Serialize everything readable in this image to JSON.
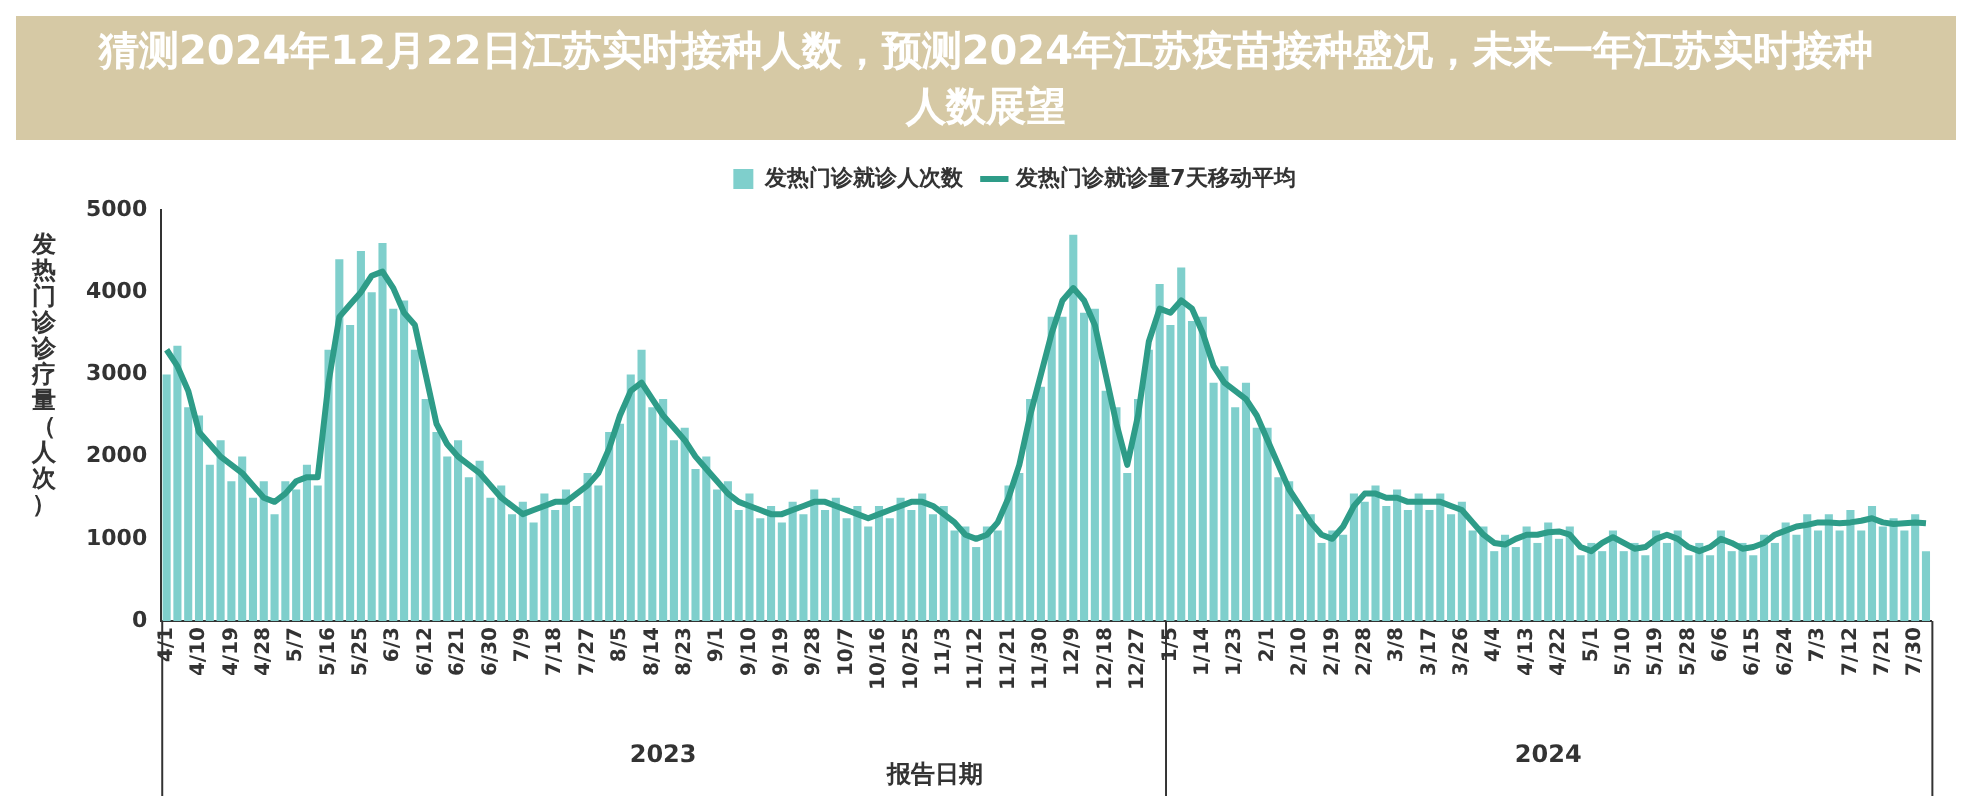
{
  "chart_data": {
    "type": "bar",
    "title": "猜测2024年12月22日江苏实时接种人数，预测2024年江苏疫苗接种盛况，未来一年江苏实时接种人数展望",
    "xlabel": "报告日期",
    "ylabel": "发热门诊诊疗量（人次）",
    "annotations": [
      "2023",
      "2024"
    ],
    "legend": "top",
    "marker": "none",
    "ylim": [
      0,
      5000
    ],
    "yticks": [
      0,
      1000,
      2000,
      3000,
      4000,
      5000
    ],
    "categories": [
      "4/1",
      null,
      null,
      "4/10",
      null,
      null,
      "4/19",
      null,
      null,
      "4/28",
      null,
      null,
      "5/7",
      null,
      null,
      "5/16",
      null,
      null,
      "5/25",
      null,
      null,
      "6/3",
      null,
      null,
      "6/12",
      null,
      null,
      "6/21",
      null,
      null,
      "6/30",
      null,
      null,
      "7/9",
      null,
      null,
      "7/18",
      null,
      null,
      "7/27",
      null,
      null,
      "8/5",
      null,
      null,
      "8/14",
      null,
      null,
      "8/23",
      null,
      null,
      "9/1",
      null,
      null,
      "9/10",
      null,
      null,
      "9/19",
      null,
      null,
      "9/28",
      null,
      null,
      "10/7",
      null,
      null,
      "10/16",
      null,
      null,
      "10/25",
      null,
      null,
      "11/3",
      null,
      null,
      "11/12",
      null,
      null,
      "11/21",
      null,
      null,
      "11/30",
      null,
      null,
      "12/9",
      null,
      null,
      "12/18",
      null,
      null,
      "12/27",
      null,
      null,
      "1/5",
      null,
      null,
      "1/14",
      null,
      null,
      "1/23",
      null,
      null,
      "2/1",
      null,
      null,
      "2/10",
      null,
      null,
      "2/19",
      null,
      null,
      "2/28",
      null,
      null,
      "3/8",
      null,
      null,
      "3/17",
      null,
      null,
      "3/26",
      null,
      null,
      "4/4",
      null,
      null,
      "4/13",
      null,
      null,
      "4/22",
      null,
      null,
      "5/1",
      null,
      null,
      "5/10",
      null,
      null,
      "5/19",
      null,
      null,
      "5/28",
      null,
      null,
      "6/6",
      null,
      null,
      "6/15",
      null,
      null,
      "6/24",
      null,
      null,
      "7/3",
      null,
      null,
      "7/12",
      null,
      null,
      "7/21",
      null,
      null,
      "7/30",
      null
    ],
    "series": [
      {
        "name": "发热门诊就诊人次数",
        "color": "#7fcfcc",
        "values": [
          3000,
          3350,
          2600,
          2500,
          1900,
          2200,
          1700,
          2000,
          1500,
          1700,
          1300,
          1700,
          1600,
          1900,
          1650,
          3300,
          4400,
          3600,
          4500,
          4000,
          4600,
          3800,
          3900,
          3300,
          2700,
          2300,
          2000,
          2200,
          1750,
          1950,
          1500,
          1650,
          1300,
          1450,
          1200,
          1550,
          1350,
          1600,
          1400,
          1800,
          1650,
          2300,
          2400,
          3000,
          3300,
          2600,
          2700,
          2200,
          2350,
          1850,
          2000,
          1600,
          1700,
          1350,
          1550,
          1250,
          1400,
          1200,
          1450,
          1300,
          1600,
          1350,
          1500,
          1250,
          1400,
          1150,
          1400,
          1250,
          1500,
          1350,
          1550,
          1300,
          1400,
          1100,
          1150,
          900,
          1150,
          1100,
          1650,
          1800,
          2700,
          2850,
          3700,
          3700,
          4700,
          3750,
          3800,
          2800,
          2600,
          1800,
          2700,
          3300,
          4100,
          3600,
          4300,
          3650,
          3700,
          2900,
          3100,
          2600,
          2900,
          2350,
          2350,
          1750,
          1700,
          1300,
          1300,
          950,
          1100,
          1050,
          1550,
          1450,
          1650,
          1400,
          1600,
          1350,
          1550,
          1350,
          1550,
          1300,
          1450,
          1100,
          1150,
          850,
          1050,
          900,
          1150,
          950,
          1200,
          1000,
          1150,
          800,
          950,
          850,
          1100,
          850,
          950,
          800,
          1100,
          950,
          1100,
          800,
          950,
          800,
          1100,
          850,
          950,
          800,
          1050,
          950,
          1200,
          1050,
          1300,
          1100,
          1300,
          1100,
          1350,
          1100,
          1400,
          1150,
          1250,
          1100,
          1300,
          850
        ]
      },
      {
        "name": "发热门诊就诊量7天移动平均",
        "type": "line",
        "color": "#2e9c88",
        "values": [
          3300,
          3100,
          2800,
          2300,
          2150,
          2000,
          1900,
          1800,
          1650,
          1500,
          1450,
          1550,
          1700,
          1750,
          1750,
          2900,
          3700,
          3850,
          4000,
          4200,
          4250,
          4050,
          3750,
          3600,
          3000,
          2400,
          2150,
          2000,
          1900,
          1800,
          1650,
          1500,
          1400,
          1300,
          1350,
          1400,
          1450,
          1450,
          1550,
          1650,
          1800,
          2100,
          2500,
          2800,
          2900,
          2700,
          2500,
          2350,
          2200,
          2000,
          1850,
          1700,
          1550,
          1450,
          1400,
          1350,
          1300,
          1300,
          1350,
          1400,
          1450,
          1450,
          1400,
          1350,
          1300,
          1250,
          1300,
          1350,
          1400,
          1450,
          1450,
          1400,
          1300,
          1200,
          1050,
          1000,
          1050,
          1200,
          1500,
          1900,
          2500,
          3000,
          3500,
          3900,
          4050,
          3900,
          3600,
          3000,
          2400,
          1900,
          2500,
          3400,
          3800,
          3750,
          3900,
          3800,
          3500,
          3100,
          2900,
          2800,
          2700,
          2500,
          2200,
          1900,
          1600,
          1400,
          1200,
          1050,
          1000,
          1150,
          1400,
          1550,
          1550,
          1500,
          1500,
          1450,
          1450,
          1450,
          1450,
          1400,
          1350,
          1200,
          1050,
          950,
          930,
          1000,
          1050,
          1050,
          1080,
          1090,
          1050,
          900,
          850,
          950,
          1020,
          950,
          880,
          900,
          1000,
          1050,
          1000,
          900,
          850,
          900,
          1000,
          950,
          880,
          900,
          950,
          1050,
          1100,
          1150,
          1170,
          1200,
          1200,
          1190,
          1200,
          1220,
          1250,
          1200,
          1180,
          1190,
          1200,
          1190
        ]
      }
    ]
  }
}
